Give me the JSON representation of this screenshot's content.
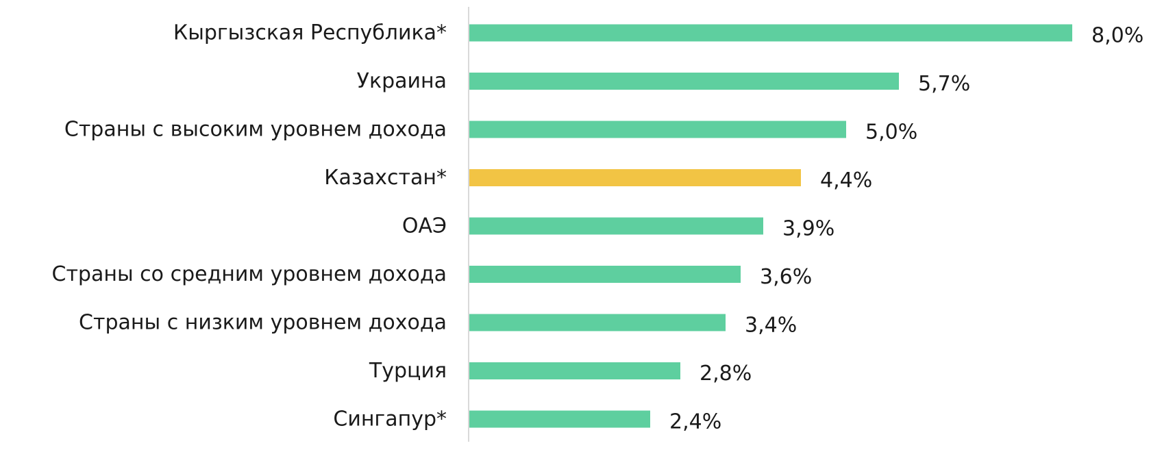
{
  "chart_data": {
    "type": "bar",
    "orientation": "horizontal",
    "categories": [
      "Кыргызская Республика*",
      "Украина",
      "Страны с высоким уровнем дохода",
      "Казахстан*",
      "ОАЭ",
      "Страны со средним уровнем дохода",
      "Страны с низким уровнем дохода",
      "Турция",
      "Сингапур*"
    ],
    "values": [
      8.0,
      5.7,
      5.0,
      4.4,
      3.9,
      3.6,
      3.4,
      2.8,
      2.4
    ],
    "value_labels": [
      "8,0%",
      "5,7%",
      "5,0%",
      "4,4%",
      "3,9%",
      "3,6%",
      "3,4%",
      "2,8%",
      "2,4%"
    ],
    "highlight_category": "Казахстан*",
    "xlim": [
      0,
      8.0
    ],
    "grid": false,
    "legend": "none",
    "title": "",
    "xlabel": "",
    "ylabel": "",
    "colors": {
      "bar": "#5ecf9f",
      "highlight": "#f2c444",
      "axis": "#d9d9d9",
      "text": "#1a1a1a"
    }
  }
}
